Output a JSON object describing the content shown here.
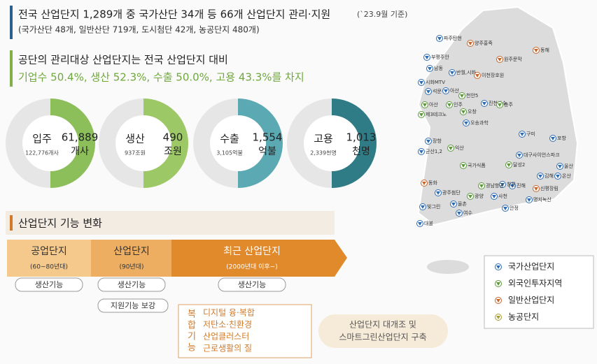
{
  "header": {
    "title": "전국 산업단지 1,289개 중 국가산단 34개 등 66개 산업단지 관리·지원",
    "note": "(`23.9월 기준)",
    "subtitle": "(국가산단 48개, 일반산단 719개, 도시첨단 42개, 농공단지 480개)"
  },
  "summary": {
    "line1": "공단의 관리대상 산업단지는 전국 산업단지 대비",
    "line2": "기업수 50.4%, 생산 52.3%, 수출 50.0%, 고용 43.3%를 차지"
  },
  "donuts": [
    {
      "label": "입주",
      "value": "61,889",
      "unit": "개사",
      "total": "122,776개사"
    },
    {
      "label": "생산",
      "value": "490",
      "unit": "조원",
      "total": "937조원"
    },
    {
      "label": "수출",
      "value": "1,554",
      "unit": "억불",
      "total": "3,105억불"
    },
    {
      "label": "고용",
      "value": "1,013",
      "unit": "천명",
      "total": "2,339천명"
    }
  ],
  "section": {
    "title": "산업단지 기능 변화",
    "stages": [
      {
        "name": "공업단지",
        "period": "(60~80년대)"
      },
      {
        "name": "산업단지",
        "period": "(90년대)"
      },
      {
        "name": "최근 산업단지",
        "period": "(2000년대 이후~)"
      }
    ],
    "functions": [
      "생산기능",
      "생산기능",
      "생산기능"
    ],
    "support": "지원기능 보강",
    "complex": {
      "label": "복합기능",
      "items": [
        "디지털 융·복합",
        "저탄소·친환경",
        "산업클러스터",
        "근로생활의 질"
      ]
    },
    "result": [
      "산업단지 대개조 및",
      "스마트그린산업단지 구축"
    ]
  },
  "map": {
    "pins": [
      {
        "label": "파주탄현",
        "type": 0
      },
      {
        "label": "양주홍죽",
        "type": 2
      },
      {
        "label": "부평주안",
        "type": 0
      },
      {
        "label": "남동",
        "type": 0
      },
      {
        "label": "반월,시화",
        "type": 0
      },
      {
        "label": "이천장호원",
        "type": 2
      },
      {
        "label": "원주문막",
        "type": 2
      },
      {
        "label": "동해",
        "type": 2
      },
      {
        "label": "시화MTV",
        "type": 0
      },
      {
        "label": "석문",
        "type": 0
      },
      {
        "label": "아산",
        "type": 0
      },
      {
        "label": "천안5",
        "type": 1
      },
      {
        "label": "아산",
        "type": 1
      },
      {
        "label": "인주",
        "type": 1
      },
      {
        "label": "제3테크노",
        "type": 1
      },
      {
        "label": "오창",
        "type": 1
      },
      {
        "label": "진천산수",
        "type": 0
      },
      {
        "label": "충주",
        "type": 1
      },
      {
        "label": "오송과학",
        "type": 0
      },
      {
        "label": "장항",
        "type": 0
      },
      {
        "label": "군산1,2",
        "type": 0
      },
      {
        "label": "익산",
        "type": 1
      },
      {
        "label": "국가식품",
        "type": 1
      },
      {
        "label": "구미",
        "type": 0
      },
      {
        "label": "포항",
        "type": 0
      },
      {
        "label": "대구사이언스파크",
        "type": 0
      },
      {
        "label": "달성2",
        "type": 1
      },
      {
        "label": "김해",
        "type": 0
      },
      {
        "label": "울산",
        "type": 0
      },
      {
        "label": "온산",
        "type": 0
      },
      {
        "label": "신평장림",
        "type": 2
      },
      {
        "label": "명지녹산",
        "type": 0
      },
      {
        "label": "진해",
        "type": 0
      },
      {
        "label": "창원",
        "type": 0
      },
      {
        "label": "경남항공",
        "type": 1
      },
      {
        "label": "사천",
        "type": 0
      },
      {
        "label": "안정",
        "type": 0
      },
      {
        "label": "광양",
        "type": 1
      },
      {
        "label": "여수",
        "type": 0
      },
      {
        "label": "광주첨단",
        "type": 0
      },
      {
        "label": "동화",
        "type": 2
      },
      {
        "label": "빛그린",
        "type": 0
      },
      {
        "label": "율촌",
        "type": 0
      },
      {
        "label": "대불",
        "type": 0
      }
    ],
    "legend": [
      "국가산업단지",
      "외국인투자지역",
      "일반산업단지",
      "농공단지"
    ]
  }
}
